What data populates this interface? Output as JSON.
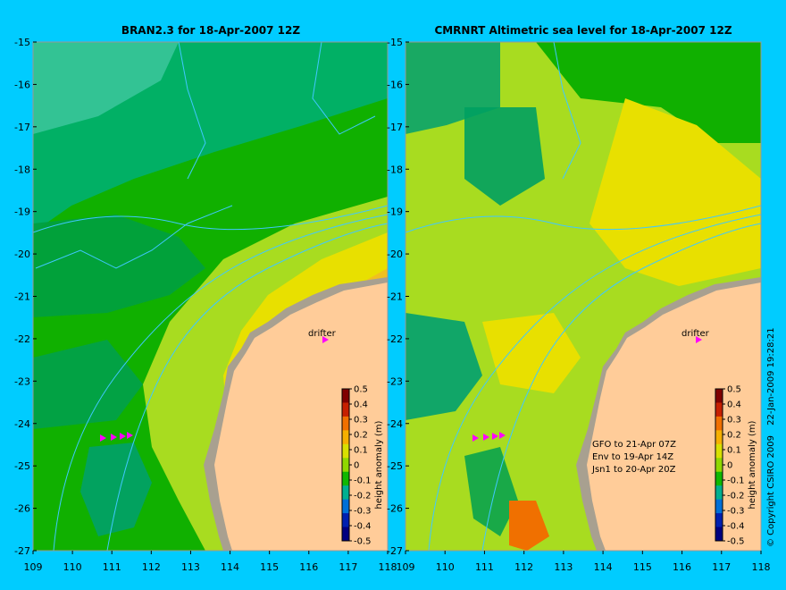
{
  "figure": {
    "copyright": "© Copyright CSIRO 2009",
    "timestamp": "22-Jan-2009 19:28:21"
  },
  "axes": {
    "y_ticks": [
      -15,
      -16,
      -17,
      -18,
      -19,
      -20,
      -21,
      -22,
      -23,
      -24,
      -25,
      -26,
      -27
    ],
    "x_ticks": [
      109,
      110,
      111,
      112,
      113,
      114,
      115,
      116,
      117,
      118
    ]
  },
  "panels": [
    {
      "id": "bran",
      "title": "BRAN2.3 for 18-Apr-2007 12Z",
      "drifter_label": "drifter",
      "notes": []
    },
    {
      "id": "cmrnrt",
      "title": "CMRNRT Altimetric sea level  for 18-Apr-2007 12Z",
      "drifter_label": "drifter",
      "notes": [
        "GFO to 21-Apr 07Z",
        "Env to 19-Apr 14Z",
        "Jsn1 to 20-Apr 20Z"
      ]
    }
  ],
  "colorbar": {
    "label": "height anomaly (m)",
    "ticks": [
      "0.5",
      "0.4",
      "0.3",
      "0.2",
      "0.1",
      "0",
      "-0.1",
      "-0.2",
      "-0.3",
      "-0.4",
      "-0.5"
    ],
    "colors": [
      "#800000",
      "#c62000",
      "#f07000",
      "#f5b000",
      "#d8e000",
      "#90d800",
      "#10b800",
      "#00b090",
      "#0070d8",
      "#0020b0",
      "#000080"
    ]
  }
}
